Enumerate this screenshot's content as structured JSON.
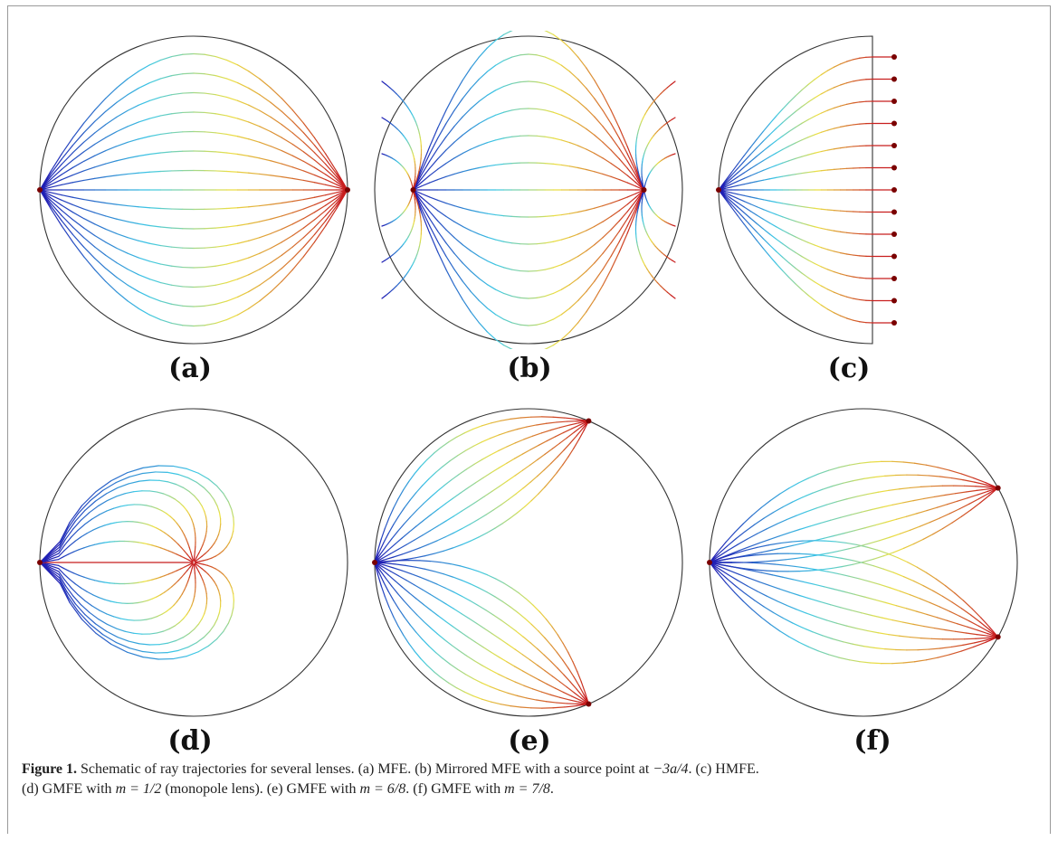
{
  "figure": {
    "panels": [
      {
        "id": "a",
        "label": "(a)",
        "description": "MFE"
      },
      {
        "id": "b",
        "label": "(b)",
        "description": "Mirrored MFE with a source point at −3a/4"
      },
      {
        "id": "c",
        "label": "(c)",
        "description": "HMFE"
      },
      {
        "id": "d",
        "label": "(d)",
        "description": "GMFE with m = 1/2 (monopole lens)"
      },
      {
        "id": "e",
        "label": "(e)",
        "description": "GMFE with m = 6/8"
      },
      {
        "id": "f",
        "label": "(f)",
        "description": "GMFE with m = 7/8"
      }
    ],
    "colors": {
      "ray_start": "#1f1fb4",
      "ray_end": "#c81e1e",
      "lens_outline": "#333333",
      "source_point": "#7a0000"
    },
    "caption": {
      "figure_label": "Figure 1.",
      "line1_a": "Schematic of ray trajectories for several lenses. (a) MFE. (b) Mirrored MFE with a source point at ",
      "line1_math_b": "−3a/4",
      "line1_c": ". (c) HMFE.",
      "line2_a": "(d) GMFE with ",
      "line2_math_d": "m = 1/2",
      "line2_b": " (monopole lens). (e) GMFE with ",
      "line2_math_e": "m = 6/8",
      "line2_c": ". (f) GMFE with ",
      "line2_math_f": "m = 7/8",
      "line2_d": "."
    }
  }
}
